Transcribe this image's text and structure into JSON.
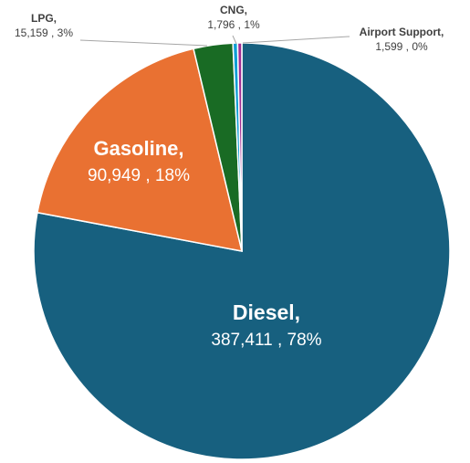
{
  "chart_data": {
    "type": "pie",
    "title": "",
    "slices": [
      {
        "name": "Diesel",
        "value": 387411,
        "value_label": "387,411",
        "percent_label": "78%",
        "color": "#17607f"
      },
      {
        "name": "Gasoline",
        "value": 90949,
        "value_label": "90,949",
        "percent_label": "18%",
        "color": "#e97132"
      },
      {
        "name": "LPG",
        "value": 15159,
        "value_label": "15,159",
        "percent_label": "3%",
        "color": "#196b24"
      },
      {
        "name": "CNG",
        "value": 1796,
        "value_label": "1,796",
        "percent_label": "1%",
        "color": "#0f9ed5"
      },
      {
        "name": "Airport Support",
        "value": 1599,
        "value_label": "1,599",
        "percent_label": "0%",
        "color": "#a02b93"
      }
    ],
    "legend": "none",
    "data_labels": "name, value, percent"
  }
}
